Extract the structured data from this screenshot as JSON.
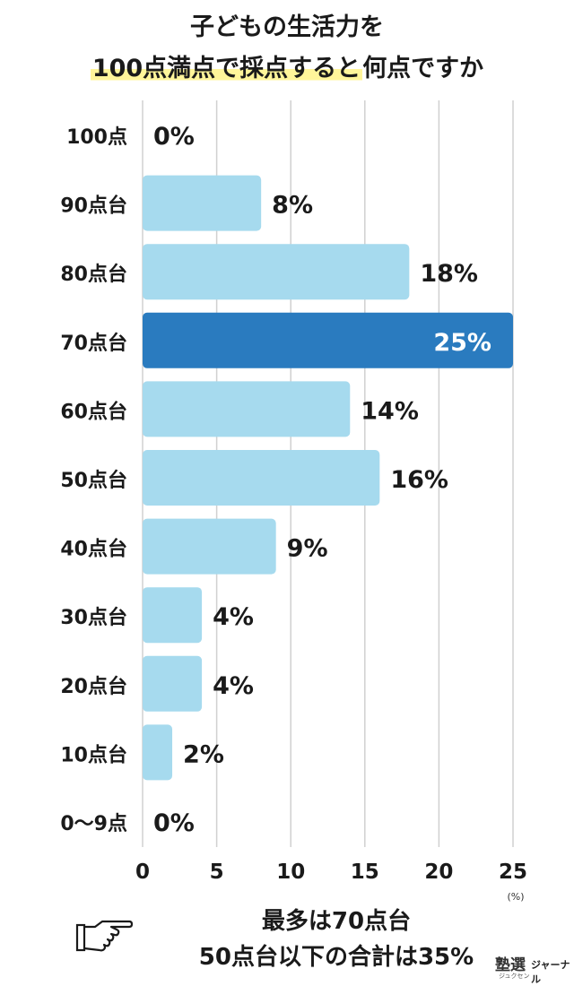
{
  "title": {
    "line1": "子どもの生活力を",
    "line2_highlight": "100点満点で採点すると",
    "line2_rest": "何点ですか"
  },
  "chart_data": {
    "type": "bar",
    "orientation": "horizontal",
    "categories": [
      "100点",
      "90点台",
      "80点台",
      "70点台",
      "60点台",
      "50点台",
      "40点台",
      "30点台",
      "20点台",
      "10点台",
      "0〜9点"
    ],
    "values": [
      0,
      8,
      18,
      25,
      14,
      16,
      9,
      4,
      4,
      2,
      0
    ],
    "value_labels": [
      "0%",
      "8%",
      "18%",
      "25%",
      "14%",
      "16%",
      "9%",
      "4%",
      "4%",
      "2%",
      "0%"
    ],
    "highlight_index": 3,
    "x_ticks": [
      "0",
      "5",
      "10",
      "15",
      "20",
      "25"
    ],
    "xlim": [
      0,
      25
    ],
    "x_unit": "(%)",
    "grid": true,
    "colors": {
      "bar": "#a6daee",
      "highlight": "#2a7bbf",
      "grid": "#d0d0d0"
    }
  },
  "summary": {
    "line1": "最多は70点台",
    "line2": "50点台以下の合計は35%"
  },
  "logo": {
    "main": "塾選",
    "sub": "ジュクセン",
    "side": "ジャーナル"
  },
  "icons": {
    "pointer": "pointing-hand-icon"
  }
}
